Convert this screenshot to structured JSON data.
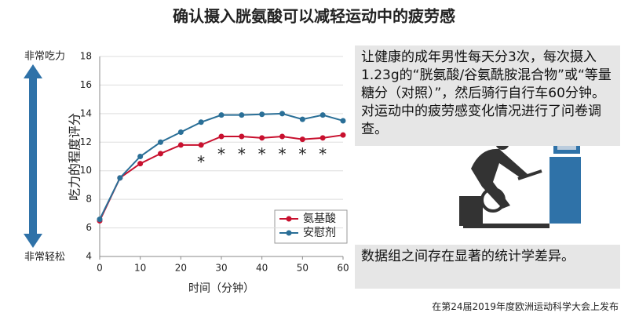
{
  "chart_data": {
    "type": "line",
    "title": "确认摄入胱氨酸可以减轻运动中的疲劳感",
    "x_label": "时间（分钟）",
    "y_label": "吃力的程度评分",
    "scale_top": "非常吃力",
    "scale_bottom": "非常轻松",
    "x": [
      0,
      5,
      10,
      15,
      20,
      25,
      30,
      35,
      40,
      45,
      50,
      55,
      60
    ],
    "series": [
      {
        "name": "氨基酸",
        "color": "#c8102e",
        "values": [
          6.5,
          9.5,
          10.5,
          11.2,
          11.8,
          11.8,
          12.4,
          12.4,
          12.3,
          12.4,
          12.2,
          12.3,
          12.5
        ]
      },
      {
        "name": "安慰剂",
        "color": "#2a6f97",
        "values": [
          6.6,
          9.5,
          11.0,
          12.0,
          12.7,
          13.4,
          13.9,
          13.9,
          13.95,
          14.0,
          13.6,
          13.9,
          13.5
        ]
      }
    ],
    "annotations": [
      {
        "x": 25,
        "text": "*"
      },
      {
        "x": 30,
        "text": "*"
      },
      {
        "x": 35,
        "text": "*"
      },
      {
        "x": 40,
        "text": "*"
      },
      {
        "x": 45,
        "text": "*"
      },
      {
        "x": 50,
        "text": "*"
      },
      {
        "x": 55,
        "text": "*"
      }
    ],
    "xlim": [
      0,
      60
    ],
    "xticks": [
      0,
      10,
      20,
      30,
      40,
      50,
      60
    ],
    "ylim": [
      4,
      18
    ],
    "yticks": [
      4,
      6,
      8,
      10,
      12,
      14,
      16,
      18
    ],
    "grid": true
  },
  "panel": {
    "description": "让健康的成年男性每天分3次，每次摄入1.23g的“胱氨酸/谷氨酰胺混合物”或“等量糖分（对照）”，然后骑行自行车60分钟。对运动中的疲劳感变化情况进行了问卷调查。",
    "conclusion": "数据组之间存在显著的统计学差异。",
    "source": "在第24届2019年度欧洲运动科学大会上发布"
  }
}
